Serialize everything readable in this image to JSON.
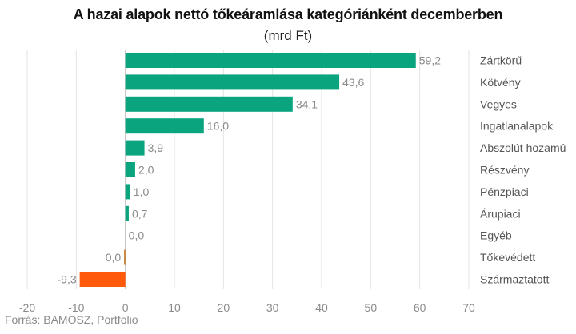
{
  "chart_data": {
    "type": "bar",
    "orientation": "horizontal",
    "title": "A hazai alapok nettó tőkeáramlása kategóriánként decemberben",
    "subtitle": "(mrd Ft)",
    "categories": [
      "Zártkörű",
      "Kötvény",
      "Vegyes",
      "Ingatlanalapok",
      "Abszolút hozamú",
      "Részvény",
      "Pénzpiaci",
      "Árupiaci",
      "Egyéb",
      "Tőkevédett",
      "Származtatott"
    ],
    "values": [
      59.2,
      43.6,
      34.1,
      16.0,
      3.9,
      2.0,
      1.0,
      0.7,
      0.0,
      0.0,
      -9.3
    ],
    "value_labels": [
      "59,2",
      "43,6",
      "34,1",
      "16,0",
      "3,9",
      "2,0",
      "1,0",
      "0,7",
      "0,0",
      "0,0",
      "-9,3"
    ],
    "xlim": [
      -20,
      70
    ],
    "xticks": [
      -20,
      -10,
      0,
      10,
      20,
      30,
      40,
      50,
      60,
      70
    ],
    "grid": true,
    "legend": "none",
    "colors": {
      "positive": "#0aa57f",
      "negative": "#ff5a0a",
      "zero_negative": "#c8721a"
    }
  },
  "source": "Forrás: BAMOSZ, Portfolio"
}
